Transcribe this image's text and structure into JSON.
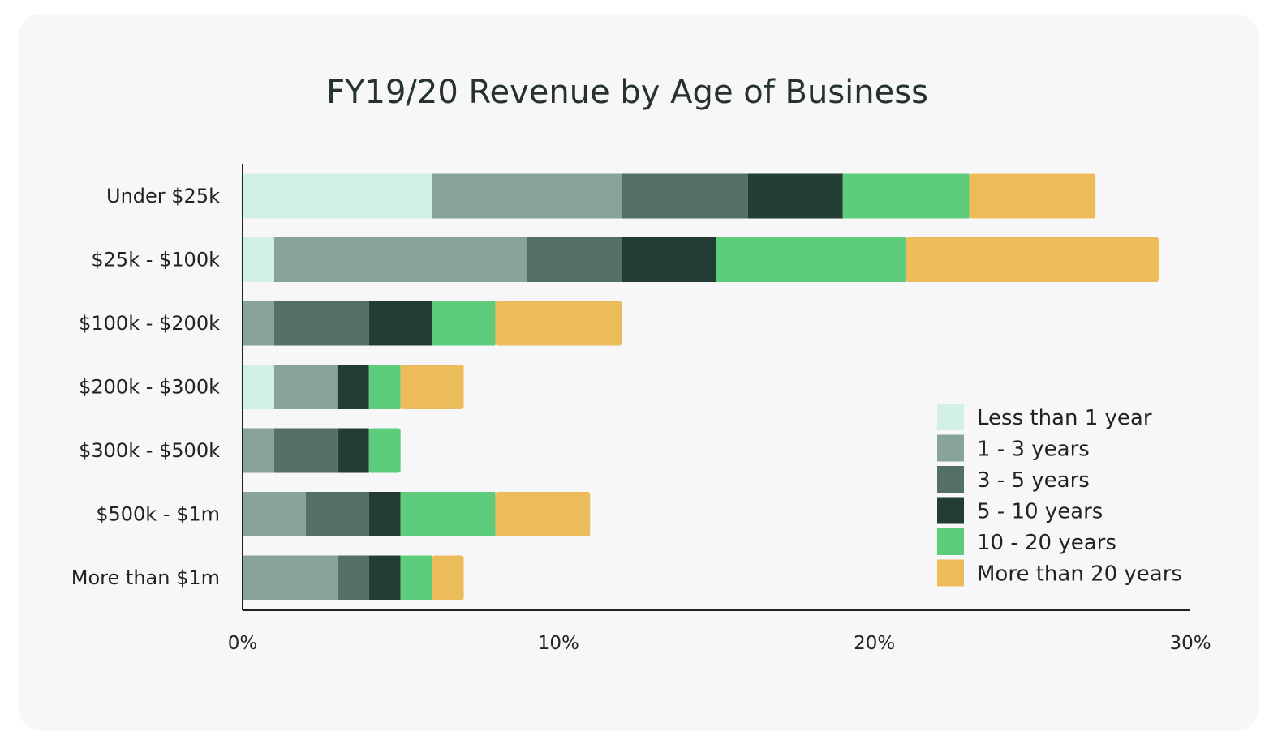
{
  "chart_data": {
    "type": "bar",
    "orientation": "horizontal",
    "stacked": true,
    "title": "FY19/20 Revenue by Age of Business",
    "xlabel": "",
    "ylabel": "",
    "xlim": [
      0,
      30
    ],
    "x_ticks": [
      "0%",
      "10%",
      "20%",
      "30%"
    ],
    "x_tick_values": [
      0,
      10,
      20,
      30
    ],
    "categories": [
      "Under $25k",
      "$25k - $100k",
      "$100k - $200k",
      "$200k - $300k",
      "$300k - $500k",
      "$500k - $1m",
      "More than $1m"
    ],
    "series": [
      {
        "name": "Less than 1 year",
        "color": "#d3f0e6",
        "values": [
          6,
          1,
          0,
          1,
          0,
          0,
          0
        ]
      },
      {
        "name": "1 - 3 years",
        "color": "#88a398",
        "values": [
          6,
          8,
          1,
          2,
          1,
          2,
          3
        ]
      },
      {
        "name": "3 - 5 years",
        "color": "#536f66",
        "values": [
          4,
          3,
          3,
          0,
          2,
          2,
          1
        ]
      },
      {
        "name": "5 - 10 years",
        "color": "#233d35",
        "values": [
          3,
          3,
          2,
          1,
          1,
          1,
          1
        ]
      },
      {
        "name": "10 - 20 years",
        "color": "#5ecd7b",
        "values": [
          4,
          6,
          2,
          1,
          1,
          3,
          1
        ]
      },
      {
        "name": "More than 20 years",
        "color": "#ecbb5a",
        "values": [
          4,
          8,
          4,
          2,
          0,
          3,
          1
        ]
      }
    ],
    "legend_position": "bottom-right",
    "grid": false
  }
}
